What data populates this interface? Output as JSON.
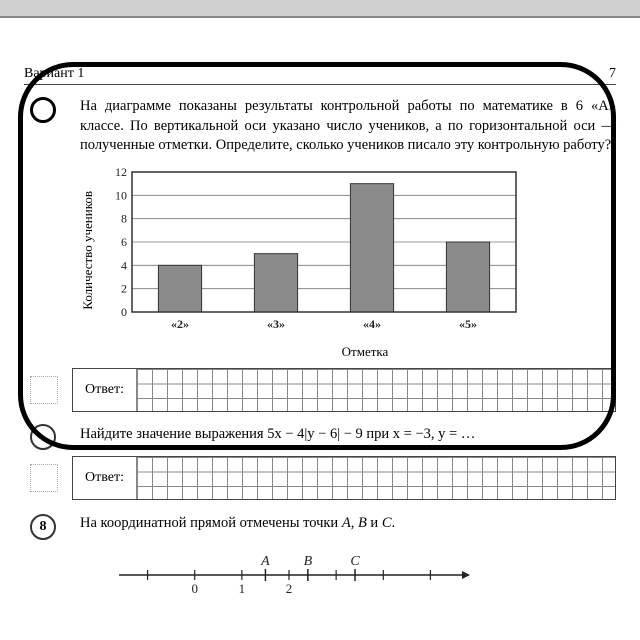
{
  "header": {
    "variant": "Вариант 1",
    "page": "7"
  },
  "problem6": {
    "text": "На диаграмме показаны результаты контрольной работы по математике в 6 «А» классе. По вертикальной оси указано число учеников, а по горизонтальной оси — полученные отметки. Определите, сколько учеников писало эту контрольную работу?",
    "chart": {
      "type": "bar",
      "ylabel": "Количество учеников",
      "xlabel": "Отметка",
      "categories": [
        "«2»",
        "«3»",
        "«4»",
        "«5»"
      ],
      "values": [
        4,
        5,
        11,
        6
      ],
      "ylim": [
        0,
        12
      ],
      "ytick_step": 2,
      "yticks": [
        0,
        2,
        4,
        6,
        8,
        10,
        12
      ],
      "bar_color": "#8a8a8a",
      "bar_border": "#333333",
      "grid_color": "#777777",
      "plot_border": "#333333",
      "background": "#ffffff",
      "bar_width": 0.45,
      "label_fontsize": 13,
      "tick_fontsize": 12
    },
    "answer_label": "Ответ:"
  },
  "problem7": {
    "text_fragment": "Найдите значение выражения 5x − 4|y − 6| − 9 при x = −3, y = …",
    "answer_label": "Ответ:"
  },
  "problem8": {
    "number": "8",
    "text": "На координатной прямой отмечены точки A, B и C.",
    "numberline": {
      "points": [
        "A",
        "B",
        "C"
      ],
      "ticks": [
        0,
        1,
        2
      ],
      "point_positions": [
        1.5,
        2.4,
        3.4
      ],
      "tick_min": -1.5,
      "tick_max": 5.5,
      "line_color": "#222222"
    }
  }
}
